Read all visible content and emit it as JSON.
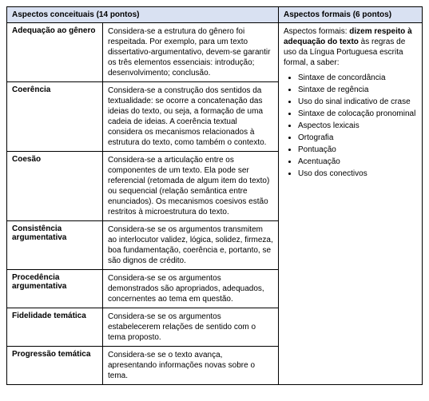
{
  "headers": {
    "conceptual": "Aspectos conceituais (14 pontos)",
    "formal": "Aspectos formais (6 pontos)"
  },
  "conceptual_rows": [
    {
      "label": "Adequação ao gênero",
      "desc": "Considera-se a estrutura do gênero foi respeitada. Por exemplo, para um texto dissertativo-argumentativo, devem-se garantir os três elementos essenciais: introdução; desenvolvimento; conclusão."
    },
    {
      "label": "Coerência",
      "desc": "Considera-se a construção dos sentidos da textualidade: se ocorre a concatenação das ideias do texto, ou seja, a formação de uma cadeia de ideias. A coerência textual considera os mecanismos relacionados à estrutura do texto, como também o contexto."
    },
    {
      "label": "Coesão",
      "desc": "Considera-se a articulação entre os componentes de um texto. Ela pode ser referencial (retomada de algum item do texto) ou sequencial (relação semântica entre enunciados). Os mecanismos coesivos estão restritos à microestrutura do texto."
    },
    {
      "label": "Consistência argumentativa",
      "desc": "Considera-se se os argumentos transmitem ao interlocutor validez, lógica, solidez, firmeza, boa fundamentação, coerência e, portanto, se são dignos de crédito."
    },
    {
      "label": "Procedência argumentativa",
      "desc": "Considera-se se os argumentos demonstrados são apropriados, adequados, concernentes ao tema em questão."
    },
    {
      "label": "Fidelidade temática",
      "desc": "Considera-se se os argumentos estabelecerem relações de sentido com o tema proposto."
    },
    {
      "label": "Progressão temática",
      "desc": "Considera-se se o texto avança, apresentando informações novas sobre o tema."
    }
  ],
  "formal": {
    "intro_prefix": "Aspectos formais: ",
    "intro_bold": "dizem respeito à adequação do texto",
    "intro_suffix": " às regras de uso da Língua Portuguesa escrita formal, a saber:",
    "items": [
      "Sintaxe de concordância",
      "Sintaxe de regência",
      "Uso do sinal indicativo de crase",
      "Sintaxe de colocação pronominal",
      "Aspectos lexicais",
      "Ortografia",
      "Pontuação",
      "Acentuação",
      "Uso dos conectivos"
    ]
  }
}
